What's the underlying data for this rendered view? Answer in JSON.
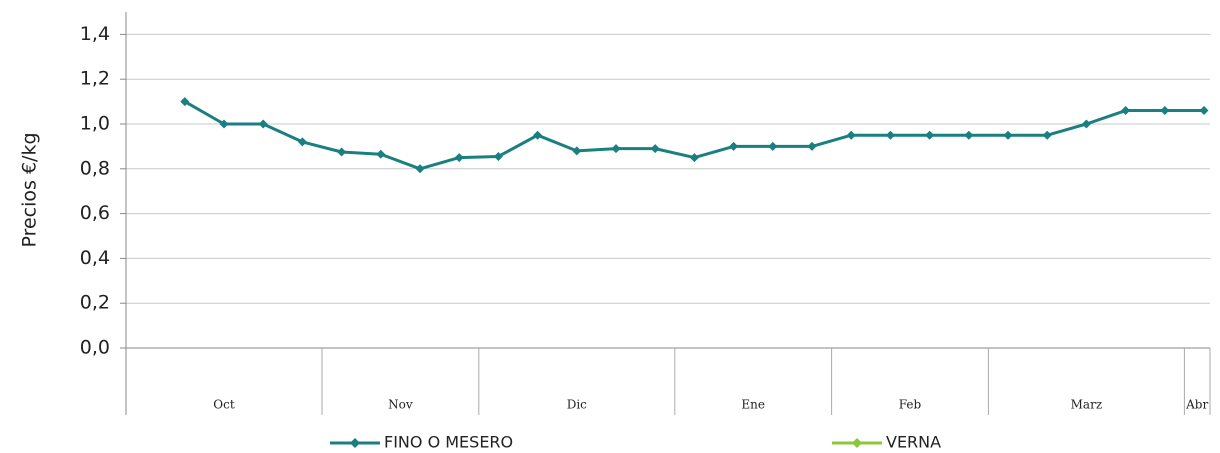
{
  "chart_data": {
    "type": "line",
    "y_label": "Precios €/kg",
    "categories": [
      null,
      null,
      null,
      null,
      null,
      null,
      null,
      null,
      null,
      null,
      null,
      null,
      null,
      null,
      null,
      null,
      null,
      null,
      null,
      null,
      null,
      null,
      null,
      null,
      null,
      null,
      null
    ],
    "month_groups": [
      {
        "label": "Oct",
        "count": 4
      },
      {
        "label": "Nov",
        "count": 4
      },
      {
        "label": "Dic",
        "count": 5
      },
      {
        "label": "Ene",
        "count": 4
      },
      {
        "label": "Feb",
        "count": 4
      },
      {
        "label": "Marz",
        "count": 5
      },
      {
        "label": "Abr",
        "count": 1
      }
    ],
    "series": [
      {
        "name": "FINO O MESERO",
        "color": "#1a7f80",
        "values": [
          1.1,
          1.0,
          1.0,
          0.92,
          0.875,
          0.865,
          0.8,
          0.85,
          0.855,
          0.95,
          0.88,
          0.89,
          0.89,
          0.85,
          0.9,
          0.9,
          0.9,
          0.95,
          0.95,
          0.95,
          0.95,
          0.95,
          0.95,
          1.0,
          1.06,
          1.06,
          1.06
        ]
      },
      {
        "name": "VERNA",
        "color": "#8cc63f",
        "values": [
          null,
          null,
          null,
          null,
          null,
          null,
          null,
          null,
          null,
          null,
          null,
          null,
          null,
          null,
          null,
          null,
          null,
          null,
          null,
          null,
          null,
          null,
          null,
          null,
          null,
          null,
          null
        ]
      }
    ],
    "ylim": [
      0,
      1.5
    ],
    "yticks": [
      {
        "value": 0,
        "label": "0,0"
      },
      {
        "value": 0.2,
        "label": "0,2"
      },
      {
        "value": 0.4,
        "label": "0,4"
      },
      {
        "value": 0.6,
        "label": "0,6"
      },
      {
        "value": 0.8,
        "label": "0,8"
      },
      {
        "value": 1.0,
        "label": "1,0"
      },
      {
        "value": 1.2,
        "label": "1,2"
      },
      {
        "value": 1.4,
        "label": "1,4"
      }
    ],
    "grid": true
  }
}
